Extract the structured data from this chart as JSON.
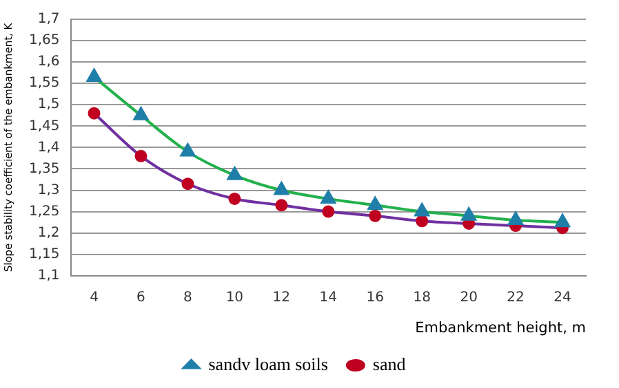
{
  "chart_data": {
    "type": "line",
    "xlabel": "Embankment height, m",
    "ylabel": "Slope stability coefficient of the embankment, K",
    "categories": [
      "4",
      "6",
      "8",
      "10",
      "12",
      "14",
      "16",
      "18",
      "20",
      "22",
      "24"
    ],
    "series": [
      {
        "name": "sandv loam soils",
        "color": "#22b14c",
        "marker": "triangle",
        "colors": [
          "#1f7fa8",
          "#1f7fa8",
          "#1f7fa8",
          "#1f7fa8",
          "#1f7fa8",
          "#1f7fa8",
          "#1f7fa8",
          "#1f7fa8",
          "#1f7fa8",
          "#1f7fa8",
          "#1f7fa8"
        ],
        "values": [
          1.565,
          1.475,
          1.39,
          1.335,
          1.3,
          1.28,
          1.265,
          1.25,
          1.24,
          1.23,
          1.225
        ]
      },
      {
        "name": "sand",
        "color": "#7030a0",
        "marker": "circle",
        "colors": [
          "#c00020",
          "#c00020",
          "#c00020",
          "#c00020",
          "#c00020",
          "#c00020",
          "#c00020",
          "#c00020",
          "#c00020",
          "#c00020",
          "#c00020"
        ],
        "values": [
          1.48,
          1.38,
          1.315,
          1.28,
          1.265,
          1.25,
          1.24,
          1.228,
          1.222,
          1.217,
          1.212
        ]
      }
    ],
    "ylim": [
      1.1,
      1.7
    ],
    "yticks": [
      {
        "value": 1.1,
        "label": "1,1"
      },
      {
        "value": 1.15,
        "label": "1,15"
      },
      {
        "value": 1.2,
        "label": "1,2"
      },
      {
        "value": 1.25,
        "label": "1,25"
      },
      {
        "value": 1.3,
        "label": "1,3"
      },
      {
        "value": 1.35,
        "label": "1,35"
      },
      {
        "value": 1.4,
        "label": "1,4"
      },
      {
        "value": 1.45,
        "label": "1,45"
      },
      {
        "value": 1.5,
        "label": "1,5"
      },
      {
        "value": 1.55,
        "label": "1,55"
      },
      {
        "value": 1.6,
        "label": "1,6"
      },
      {
        "value": 1.65,
        "label": "1,65"
      },
      {
        "value": 1.7,
        "label": "1,7"
      }
    ],
    "grid": "y",
    "legend": "bottom",
    "line_style": "solid"
  }
}
